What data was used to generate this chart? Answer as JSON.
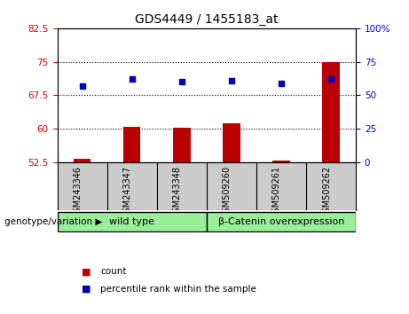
{
  "title": "GDS4449 / 1455183_at",
  "samples": [
    "GSM243346",
    "GSM243347",
    "GSM243348",
    "GSM509260",
    "GSM509261",
    "GSM509262"
  ],
  "count_values": [
    53.3,
    60.4,
    60.2,
    61.2,
    52.8,
    75.0
  ],
  "percentile_values": [
    57,
    62,
    60,
    61,
    59,
    62
  ],
  "ylim_left": [
    52.5,
    82.5
  ],
  "ylim_right": [
    0,
    100
  ],
  "yticks_left": [
    52.5,
    60.0,
    67.5,
    75.0,
    82.5
  ],
  "ytick_labels_left": [
    "52.5",
    "60",
    "67.5",
    "75",
    "82.5"
  ],
  "yticks_right": [
    0,
    25,
    50,
    75,
    100
  ],
  "ytick_labels_right": [
    "0",
    "25",
    "50",
    "75",
    "100%"
  ],
  "bar_color": "#bb0000",
  "dot_color": "#0000bb",
  "bar_bottom": 52.5,
  "bar_width": 0.35,
  "groups": [
    {
      "label": "wild type",
      "start": 0,
      "end": 3,
      "color": "#99ee99"
    },
    {
      "label": "β-Catenin overexpression",
      "start": 3,
      "end": 6,
      "color": "#99ee99"
    }
  ],
  "group_label_prefix": "genotype/variation",
  "legend_items": [
    {
      "label": "count",
      "color": "#bb0000"
    },
    {
      "label": "percentile rank within the sample",
      "color": "#0000bb"
    }
  ],
  "grid_color": "black",
  "tick_color_left": "#cc0000",
  "tick_color_right": "#0000cc",
  "sample_box_color": "#cccccc",
  "plot_bg": "white",
  "fig_bg": "white"
}
